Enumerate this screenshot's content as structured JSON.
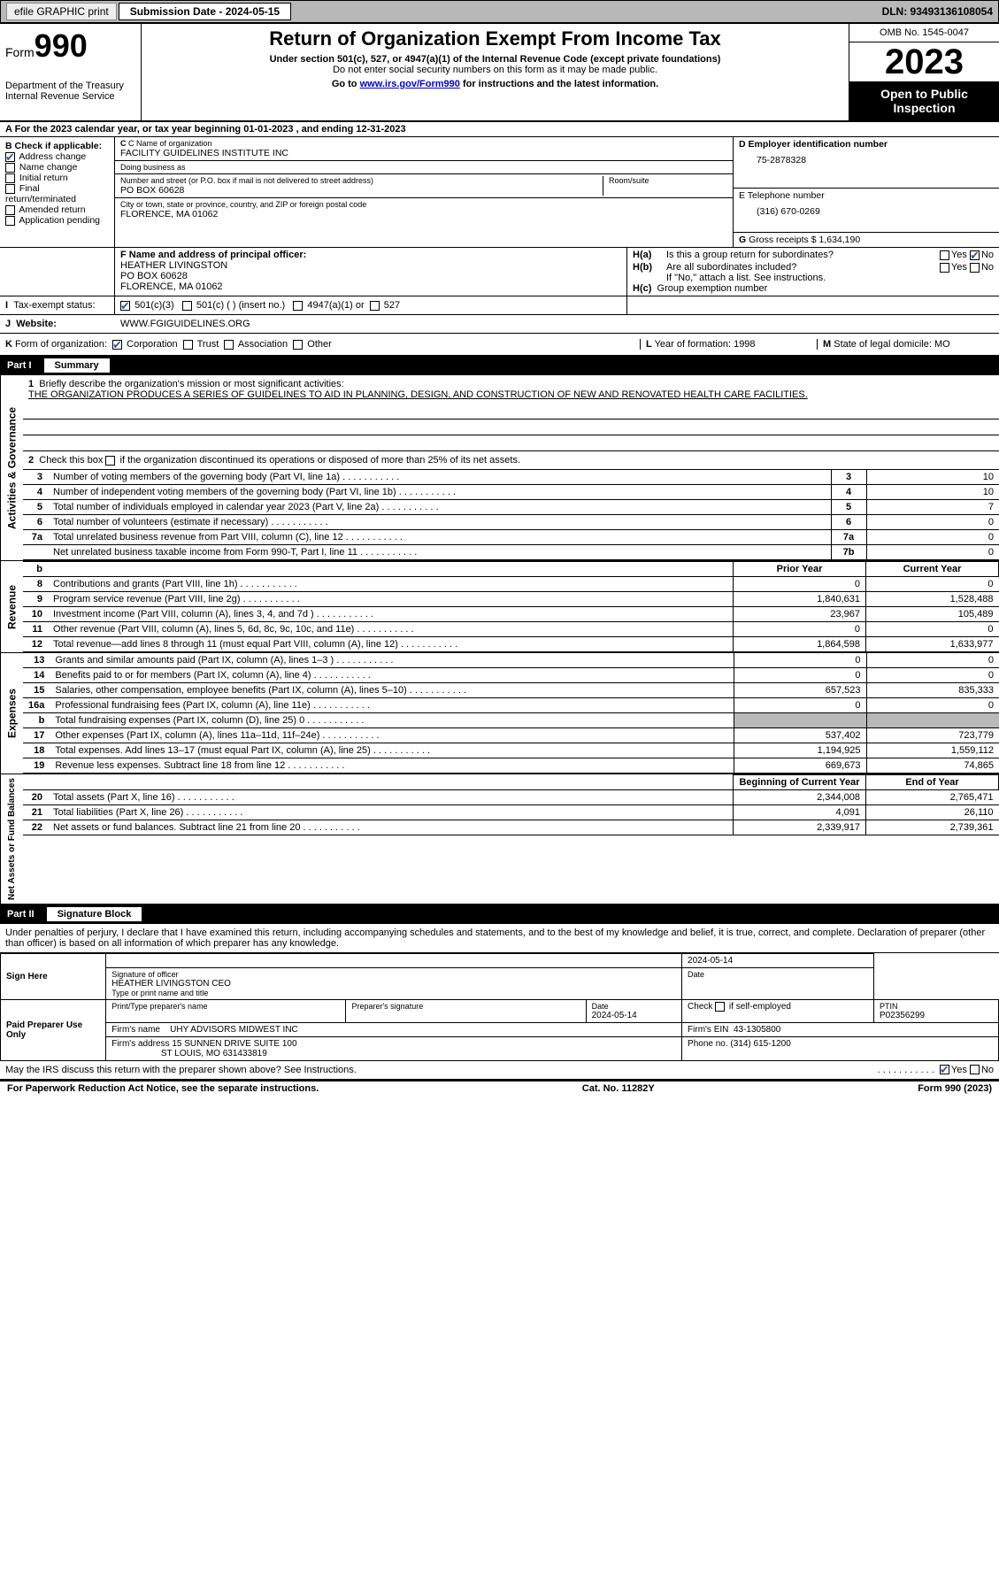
{
  "topbar": {
    "efile_label": "efile GRAPHIC print",
    "submission_label": "Submission Date - 2024-05-15",
    "dln_label": "DLN: 93493136108054"
  },
  "header": {
    "form_word": "Form",
    "form_num": "990",
    "dept": "Department of the Treasury Internal Revenue Service",
    "title": "Return of Organization Exempt From Income Tax",
    "subtitle": "Under section 501(c), 527, or 4947(a)(1) of the Internal Revenue Code (except private foundations)",
    "ssn_note": "Do not enter social security numbers on this form as it may be made public.",
    "goto_prefix": "Go to ",
    "goto_link": "www.irs.gov/Form990",
    "goto_suffix": " for instructions and the latest information.",
    "omb": "OMB No. 1545-0047",
    "year": "2023",
    "open_pub": "Open to Public Inspection"
  },
  "line_a": "For the 2023 calendar year, or tax year beginning 01-01-2023   , and ending 12-31-2023",
  "section_b": {
    "check_label": "Check if applicable:",
    "options": [
      {
        "label": "Address change",
        "checked": true
      },
      {
        "label": "Name change",
        "checked": false
      },
      {
        "label": "Initial return",
        "checked": false
      },
      {
        "label": "Final return/terminated",
        "checked": false
      },
      {
        "label": "Amended return",
        "checked": false
      },
      {
        "label": "Application pending",
        "checked": false
      }
    ],
    "c_label": "C Name of organization",
    "c_value": "FACILITY GUIDELINES INSTITUTE INC",
    "dba_label": "Doing business as",
    "dba_value": "",
    "addr_label": "Number and street (or P.O. box if mail is not delivered to street address)",
    "addr_value": "PO BOX 60628",
    "room_label": "Room/suite",
    "city_label": "City or town, state or province, country, and ZIP or foreign postal code",
    "city_value": "FLORENCE, MA  01062",
    "d_label": "D Employer identification number",
    "d_value": "75-2878328",
    "e_label": "E Telephone number",
    "e_value": "(316) 670-0269",
    "g_label": "G",
    "g_text": "Gross receipts $",
    "g_value": "1,634,190"
  },
  "section_f": {
    "f_label": "F  Name and address of principal officer:",
    "f_name": "HEATHER LIVINGSTON",
    "f_addr1": "PO BOX 60628",
    "f_addr2": "FLORENCE, MA  01062",
    "ha_label": "H(a)",
    "ha_text": "Is this a group return for subordinates?",
    "ha_no_checked": true,
    "hb_label": "H(b)",
    "hb_text": "Are all subordinates included?",
    "hb_note": "If \"No,\" attach a list. See instructions.",
    "hc_label": "H(c)",
    "hc_text": "Group exemption number",
    "yes": "Yes",
    "no": "No"
  },
  "section_i": {
    "i_label": "I",
    "tax_label": "Tax-exempt status:",
    "opt_501c3": "501(c)(3)",
    "opt_501c": "501(c) (  ) (insert no.)",
    "opt_4947": "4947(a)(1) or",
    "opt_527": "527"
  },
  "section_j": {
    "j_label": "J",
    "web_label": "Website:",
    "web_value": "WWW.FGIGUIDELINES.ORG"
  },
  "section_k": {
    "k_label": "K",
    "form_org": "Form of organization:",
    "corp": "Corporation",
    "trust": "Trust",
    "assoc": "Association",
    "other": "Other",
    "l_label": "L",
    "l_text": "Year of formation: 1998",
    "m_label": "M",
    "m_text": "State of legal domicile: MO"
  },
  "part1": {
    "part": "Part I",
    "title": "Summary",
    "q1_label": "Briefly describe the organization's mission or most significant activities:",
    "q1_text": "THE ORGANIZATION PRODUCES A SERIES OF GUIDELINES TO AID IN PLANNING, DESIGN, AND CONSTRUCTION OF NEW AND RENOVATED HEALTH CARE FACILITIES.",
    "q2": "Check this box     if the organization discontinued its operations or disposed of more than 25% of its net assets.",
    "vlabel_gov": "Activities & Governance",
    "vlabel_rev": "Revenue",
    "vlabel_exp": "Expenses",
    "vlabel_net": "Net Assets or Fund Balances",
    "col_prior": "Prior Year",
    "col_current": "Current Year",
    "col_begin": "Beginning of Current Year",
    "col_end": "End of Year",
    "gov_lines": [
      {
        "n": "3",
        "d": "Number of voting members of the governing body (Part VI, line 1a)",
        "box": "3",
        "v": "10"
      },
      {
        "n": "4",
        "d": "Number of independent voting members of the governing body (Part VI, line 1b)",
        "box": "4",
        "v": "10"
      },
      {
        "n": "5",
        "d": "Total number of individuals employed in calendar year 2023 (Part V, line 2a)",
        "box": "5",
        "v": "7"
      },
      {
        "n": "6",
        "d": "Total number of volunteers (estimate if necessary)",
        "box": "6",
        "v": "0"
      },
      {
        "n": "7a",
        "d": "Total unrelated business revenue from Part VIII, column (C), line 12",
        "box": "7a",
        "v": "0"
      },
      {
        "n": "",
        "d": "Net unrelated business taxable income from Form 990-T, Part I, line 11",
        "box": "7b",
        "v": "0"
      }
    ],
    "rev_lines": [
      {
        "n": "8",
        "d": "Contributions and grants (Part VIII, line 1h)",
        "p": "0",
        "c": "0"
      },
      {
        "n": "9",
        "d": "Program service revenue (Part VIII, line 2g)",
        "p": "1,840,631",
        "c": "1,528,488"
      },
      {
        "n": "10",
        "d": "Investment income (Part VIII, column (A), lines 3, 4, and 7d )",
        "p": "23,967",
        "c": "105,489"
      },
      {
        "n": "11",
        "d": "Other revenue (Part VIII, column (A), lines 5, 6d, 8c, 9c, 10c, and 11e)",
        "p": "0",
        "c": "0"
      },
      {
        "n": "12",
        "d": "Total revenue—add lines 8 through 11 (must equal Part VIII, column (A), line 12)",
        "p": "1,864,598",
        "c": "1,633,977"
      }
    ],
    "exp_lines": [
      {
        "n": "13",
        "d": "Grants and similar amounts paid (Part IX, column (A), lines 1–3 )",
        "p": "0",
        "c": "0"
      },
      {
        "n": "14",
        "d": "Benefits paid to or for members (Part IX, column (A), line 4)",
        "p": "0",
        "c": "0"
      },
      {
        "n": "15",
        "d": "Salaries, other compensation, employee benefits (Part IX, column (A), lines 5–10)",
        "p": "657,523",
        "c": "835,333"
      },
      {
        "n": "16a",
        "d": "Professional fundraising fees (Part IX, column (A), line 11e)",
        "p": "0",
        "c": "0"
      },
      {
        "n": "b",
        "d": "Total fundraising expenses (Part IX, column (D), line 25) 0",
        "p": "SHADE",
        "c": "SHADE"
      },
      {
        "n": "17",
        "d": "Other expenses (Part IX, column (A), lines 11a–11d, 11f–24e)",
        "p": "537,402",
        "c": "723,779"
      },
      {
        "n": "18",
        "d": "Total expenses. Add lines 13–17 (must equal Part IX, column (A), line 25)",
        "p": "1,194,925",
        "c": "1,559,112"
      },
      {
        "n": "19",
        "d": "Revenue less expenses. Subtract line 18 from line 12",
        "p": "669,673",
        "c": "74,865"
      }
    ],
    "net_lines": [
      {
        "n": "20",
        "d": "Total assets (Part X, line 16)",
        "p": "2,344,008",
        "c": "2,765,471"
      },
      {
        "n": "21",
        "d": "Total liabilities (Part X, line 26)",
        "p": "4,091",
        "c": "26,110"
      },
      {
        "n": "22",
        "d": "Net assets or fund balances. Subtract line 21 from line 20",
        "p": "2,339,917",
        "c": "2,739,361"
      }
    ]
  },
  "part2": {
    "part": "Part II",
    "title": "Signature Block",
    "decl": "Under penalties of perjury, I declare that I have examined this return, including accompanying schedules and statements, and to the best of my knowledge and belief, it is true, correct, and complete. Declaration of preparer (other than officer) is based on all information of which preparer has any knowledge.",
    "sign_here": "Sign Here",
    "sig_officer_lbl": "Signature of officer",
    "sig_date": "2024-05-14",
    "date_lbl": "Date",
    "officer_name": "HEATHER LIVINGSTON CEO",
    "type_name_lbl": "Type or print name and title",
    "paid_prep": "Paid Preparer Use Only",
    "prep_name_lbl": "Print/Type preparer's name",
    "prep_sig_lbl": "Preparer's signature",
    "prep_date": "2024-05-14",
    "check_self": "Check      if self-employed",
    "ptin_lbl": "PTIN",
    "ptin": "P02356299",
    "firm_name_lbl": "Firm's name",
    "firm_name": "UHY ADVISORS MIDWEST INC",
    "firm_ein_lbl": "Firm's EIN",
    "firm_ein": "43-1305800",
    "firm_addr_lbl": "Firm's address",
    "firm_addr1": "15 SUNNEN DRIVE SUITE 100",
    "firm_addr2": "ST LOUIS, MO  631433819",
    "phone_lbl": "Phone no.",
    "phone": "(314) 615-1200",
    "discuss": "May the IRS discuss this return with the preparer shown above? See Instructions.",
    "discuss_yes_checked": true
  },
  "footer": {
    "pra": "For Paperwork Reduction Act Notice, see the separate instructions.",
    "cat": "Cat. No. 11282Y",
    "form": "Form 990 (2023)"
  }
}
